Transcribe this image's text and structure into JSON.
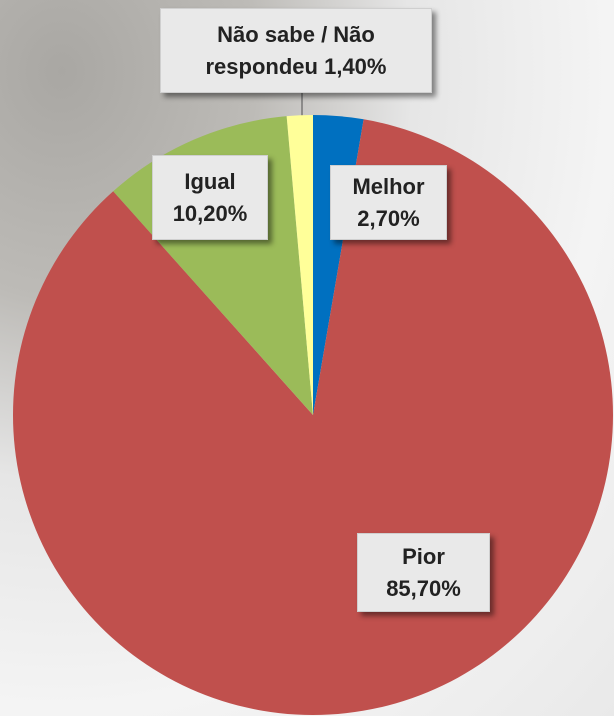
{
  "chart_data": {
    "type": "pie",
    "categories": [
      "Melhor",
      "Pior",
      "Igual",
      "Não sabe / Não respondeu"
    ],
    "values": [
      2.7,
      85.7,
      10.2,
      1.4
    ],
    "value_labels": [
      "2,70%",
      "85,70%",
      "10,20%",
      "1,40%"
    ],
    "colors": [
      "#0070c0",
      "#c0504d",
      "#9bbb59",
      "#ffff99"
    ]
  }
}
